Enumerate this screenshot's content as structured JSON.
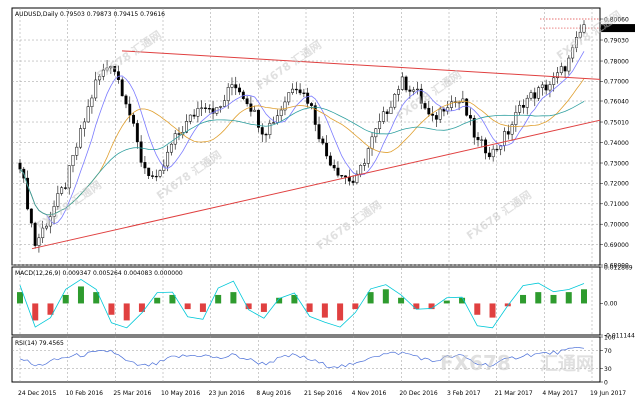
{
  "chart_data": {
    "type": "line",
    "symbol": "AUDUSD,Daily",
    "ohlc_text": "0.79503 0.79873 0.79415 0.79616",
    "price_axis": {
      "range": [
        0.68,
        0.806
      ],
      "ticks": [
        "0.80060",
        "0.79616",
        "0.79030",
        "0.78000",
        "0.77000",
        "0.76040",
        "0.75010",
        "0.74000",
        "0.73000",
        "0.72000",
        "0.71000",
        "0.70000",
        "0.69000",
        "0.68000"
      ]
    },
    "date_labels": [
      "24 Dec 2015",
      "10 Feb 2016",
      "25 Mar 2016",
      "10 May 2016",
      "23 Jun 2016",
      "8 Aug 2016",
      "21 Sep 2016",
      "4 Nov 2016",
      "20 Dec 2016",
      "3 Feb 2017",
      "21 Mar 2017",
      "4 May 2017",
      "19 Jun 2017"
    ],
    "price_series": [
      0.73,
      0.69,
      0.705,
      0.72,
      0.745,
      0.77,
      0.78,
      0.76,
      0.73,
      0.72,
      0.74,
      0.75,
      0.76,
      0.755,
      0.77,
      0.76,
      0.745,
      0.755,
      0.77,
      0.76,
      0.735,
      0.725,
      0.72,
      0.74,
      0.755,
      0.77,
      0.765,
      0.75,
      0.76,
      0.76,
      0.74,
      0.735,
      0.745,
      0.76,
      0.765,
      0.77,
      0.78,
      0.798
    ],
    "trendlines": [
      {
        "name": "upper",
        "from": 0.785,
        "to": 0.771
      },
      {
        "name": "lower",
        "from": 0.688,
        "to": 0.751
      }
    ],
    "macd": {
      "label": "MACD(12,26,9) 0.009347 0.005264 0.004083 0.000000",
      "ticks": [
        "0.012869",
        "0.00",
        "-0.011144"
      ],
      "histogram": [
        0.004,
        -0.006,
        -0.004,
        0.003,
        0.006,
        0.004,
        -0.004,
        -0.006,
        -0.003,
        0.002,
        0.003,
        -0.002,
        -0.003,
        0.003,
        0.004,
        -0.002,
        -0.003,
        0.002,
        0.003,
        -0.003,
        -0.005,
        -0.006,
        -0.002,
        0.004,
        0.005,
        0.002,
        -0.002,
        -0.002,
        0.001,
        0.002,
        -0.004,
        -0.005,
        -0.001,
        0.003,
        0.004,
        0.003,
        0.004,
        0.005
      ]
    },
    "rsi": {
      "label": "RSI(14) 79.4565",
      "ticks": [
        "100",
        "70",
        "30",
        "0"
      ],
      "values": [
        55,
        35,
        45,
        55,
        60,
        65,
        70,
        45,
        35,
        40,
        55,
        58,
        60,
        52,
        60,
        50,
        40,
        52,
        60,
        50,
        38,
        35,
        38,
        58,
        62,
        65,
        58,
        45,
        55,
        58,
        40,
        38,
        50,
        60,
        62,
        65,
        70,
        79
      ]
    },
    "grid": true,
    "colors": {
      "candle_up": "#000000",
      "candle_down": "#000000",
      "ma_fast": "#7b7bff",
      "ma_mid": "#e0a030",
      "ma_slow": "#30a0a0",
      "trendline": "#e04040",
      "macd_up": "#2e9b2e",
      "macd_down": "#e04040",
      "signal": "#00c8d8",
      "rsi": "#4a6fd8"
    }
  },
  "watermark": {
    "brand": "FX678",
    "cn": "汇通网"
  }
}
